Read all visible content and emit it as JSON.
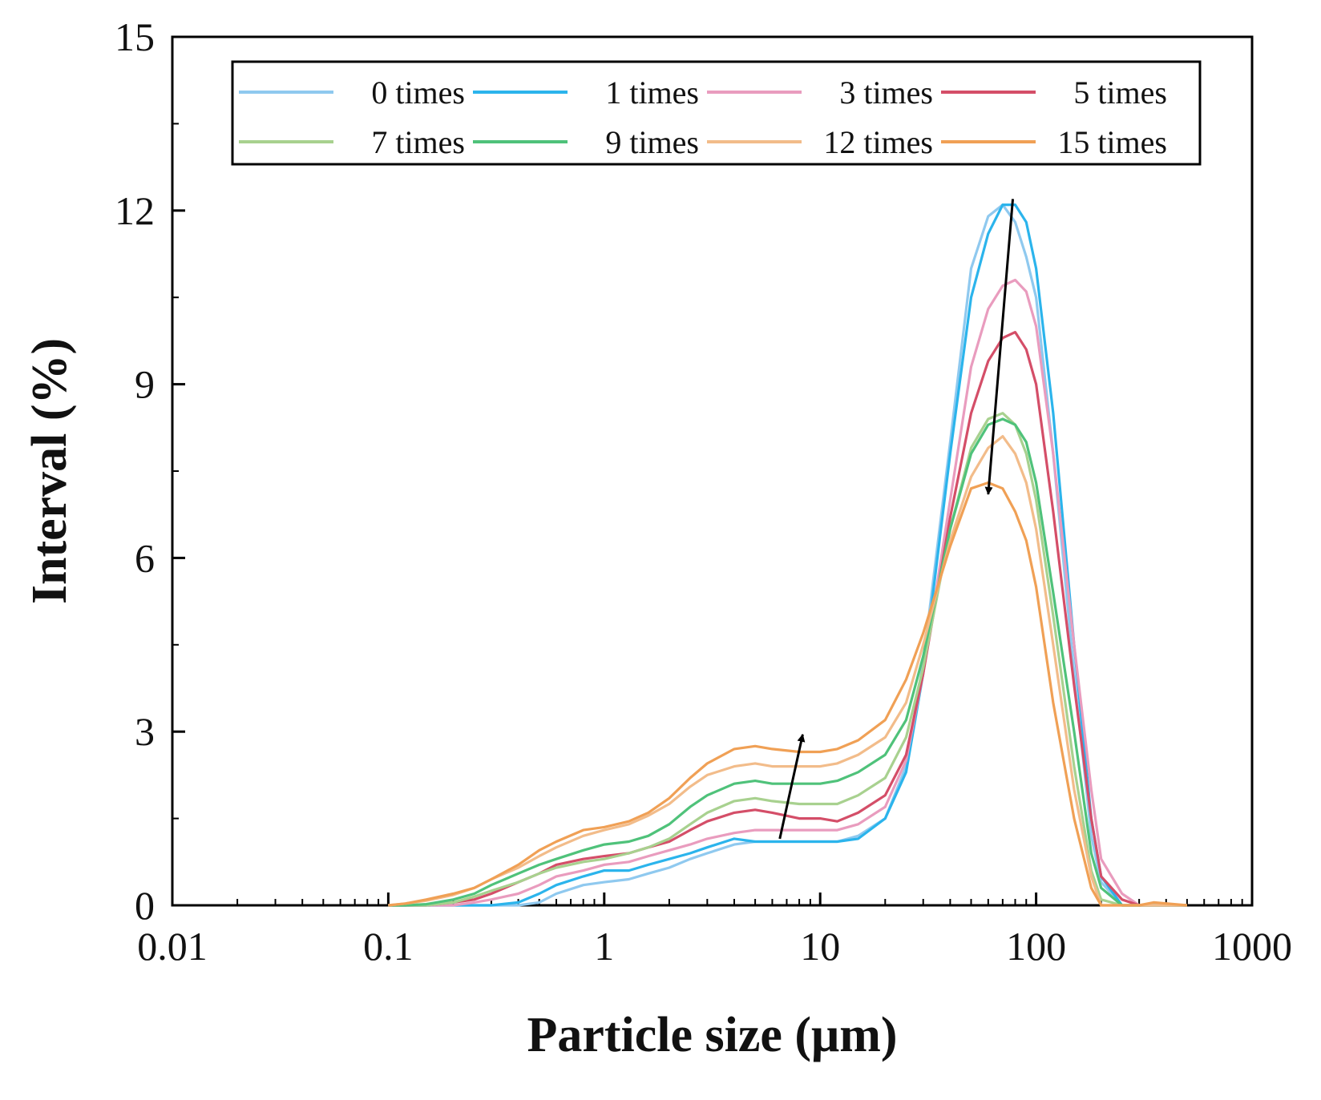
{
  "chart_data": {
    "type": "line",
    "title": "",
    "xlabel": "Particle size (μm)",
    "ylabel": "Interval (%)",
    "xscale": "log",
    "xlim": [
      0.01,
      1000
    ],
    "ylim": [
      0,
      15
    ],
    "xticks": [
      0.01,
      0.1,
      1,
      10,
      100,
      1000
    ],
    "xtick_labels": [
      "0.01",
      "0.1",
      "1",
      "10",
      "100",
      "1000"
    ],
    "yticks": [
      0,
      3,
      6,
      9,
      12,
      15
    ],
    "ytick_labels": [
      "0",
      "3",
      "6",
      "9",
      "12",
      "15"
    ],
    "grid": false,
    "legend_position": "top",
    "x": [
      0.1,
      0.12,
      0.15,
      0.2,
      0.25,
      0.3,
      0.4,
      0.5,
      0.6,
      0.8,
      1,
      1.3,
      1.6,
      2,
      2.5,
      3,
      4,
      5,
      6,
      8,
      10,
      12,
      15,
      20,
      25,
      30,
      40,
      50,
      60,
      70,
      80,
      90,
      100,
      120,
      150,
      180,
      200,
      250,
      300,
      350,
      500
    ],
    "series": [
      {
        "name": "0 times",
        "color": "#8fc9ef",
        "values": [
          0,
          0,
          0,
          0,
          0,
          0,
          0,
          0.05,
          0.2,
          0.35,
          0.4,
          0.45,
          0.55,
          0.65,
          0.8,
          0.9,
          1.05,
          1.1,
          1.1,
          1.1,
          1.1,
          1.1,
          1.2,
          1.5,
          2.4,
          4.2,
          8.0,
          11.0,
          11.9,
          12.1,
          11.8,
          11.2,
          10.5,
          7.8,
          4.0,
          1.2,
          0.4,
          0,
          0,
          0,
          0
        ]
      },
      {
        "name": "1 times",
        "color": "#2bb4ec",
        "values": [
          0,
          0,
          0,
          0,
          0,
          0,
          0.05,
          0.2,
          0.35,
          0.5,
          0.6,
          0.6,
          0.7,
          0.8,
          0.9,
          1.0,
          1.15,
          1.1,
          1.1,
          1.1,
          1.1,
          1.1,
          1.15,
          1.5,
          2.3,
          4.0,
          7.8,
          10.5,
          11.6,
          12.1,
          12.1,
          11.8,
          11.0,
          8.5,
          4.5,
          1.5,
          0.5,
          0,
          0,
          0,
          0
        ]
      },
      {
        "name": "3 times",
        "color": "#e99cbe",
        "values": [
          0,
          0,
          0,
          0,
          0.05,
          0.1,
          0.2,
          0.35,
          0.5,
          0.6,
          0.7,
          0.75,
          0.85,
          0.95,
          1.05,
          1.15,
          1.25,
          1.3,
          1.3,
          1.3,
          1.3,
          1.3,
          1.4,
          1.7,
          2.5,
          4.0,
          7.0,
          9.3,
          10.3,
          10.7,
          10.8,
          10.6,
          10.0,
          7.8,
          4.5,
          2.0,
          0.8,
          0.2,
          0,
          0,
          0
        ]
      },
      {
        "name": "5 times",
        "color": "#d44e68",
        "values": [
          0,
          0,
          0,
          0.05,
          0.1,
          0.2,
          0.4,
          0.55,
          0.7,
          0.8,
          0.85,
          0.9,
          1.0,
          1.1,
          1.3,
          1.45,
          1.6,
          1.65,
          1.6,
          1.5,
          1.5,
          1.45,
          1.6,
          1.9,
          2.6,
          4.0,
          6.7,
          8.5,
          9.4,
          9.8,
          9.9,
          9.6,
          9.0,
          6.8,
          3.8,
          1.5,
          0.5,
          0.1,
          0,
          0,
          0
        ]
      },
      {
        "name": "7 times",
        "color": "#a8d18f",
        "values": [
          0,
          0,
          0,
          0.05,
          0.15,
          0.25,
          0.4,
          0.55,
          0.65,
          0.75,
          0.8,
          0.9,
          1.0,
          1.15,
          1.4,
          1.6,
          1.8,
          1.85,
          1.8,
          1.75,
          1.75,
          1.75,
          1.9,
          2.2,
          2.9,
          4.1,
          6.5,
          7.9,
          8.4,
          8.5,
          8.3,
          7.8,
          7.0,
          5.0,
          2.4,
          0.6,
          0.1,
          0,
          0,
          0,
          0
        ]
      },
      {
        "name": "9 times",
        "color": "#4fc27a",
        "values": [
          0,
          0,
          0.02,
          0.1,
          0.2,
          0.35,
          0.55,
          0.7,
          0.8,
          0.95,
          1.05,
          1.1,
          1.2,
          1.4,
          1.7,
          1.9,
          2.1,
          2.15,
          2.1,
          2.1,
          2.1,
          2.15,
          2.3,
          2.6,
          3.2,
          4.3,
          6.5,
          7.8,
          8.3,
          8.4,
          8.3,
          8.0,
          7.3,
          5.4,
          3.0,
          0.9,
          0.3,
          0,
          0,
          0,
          0
        ]
      },
      {
        "name": "12 times",
        "color": "#f2bc8a",
        "values": [
          0,
          0.03,
          0.08,
          0.18,
          0.3,
          0.45,
          0.65,
          0.85,
          1.0,
          1.2,
          1.3,
          1.4,
          1.55,
          1.75,
          2.05,
          2.25,
          2.4,
          2.45,
          2.4,
          2.4,
          2.4,
          2.45,
          2.6,
          2.9,
          3.5,
          4.5,
          6.3,
          7.4,
          7.9,
          8.1,
          7.8,
          7.3,
          6.5,
          4.5,
          2.0,
          0.5,
          0,
          0,
          0,
          0,
          0
        ]
      },
      {
        "name": "15 times",
        "color": "#f0a055",
        "values": [
          0,
          0.03,
          0.1,
          0.2,
          0.3,
          0.45,
          0.7,
          0.95,
          1.1,
          1.3,
          1.35,
          1.45,
          1.6,
          1.85,
          2.2,
          2.45,
          2.7,
          2.75,
          2.7,
          2.65,
          2.65,
          2.7,
          2.85,
          3.2,
          3.9,
          4.7,
          6.2,
          7.2,
          7.3,
          7.2,
          6.8,
          6.3,
          5.5,
          3.5,
          1.5,
          0.3,
          0,
          0,
          0,
          0.05,
          0
        ]
      }
    ],
    "annotations": [
      {
        "type": "arrow",
        "from": [
          6.5,
          1.15
        ],
        "to": [
          8.3,
          2.95
        ],
        "label": "increase"
      },
      {
        "type": "arrow",
        "from": [
          78,
          12.2
        ],
        "to": [
          60,
          7.1
        ],
        "label": "decrease"
      }
    ]
  }
}
